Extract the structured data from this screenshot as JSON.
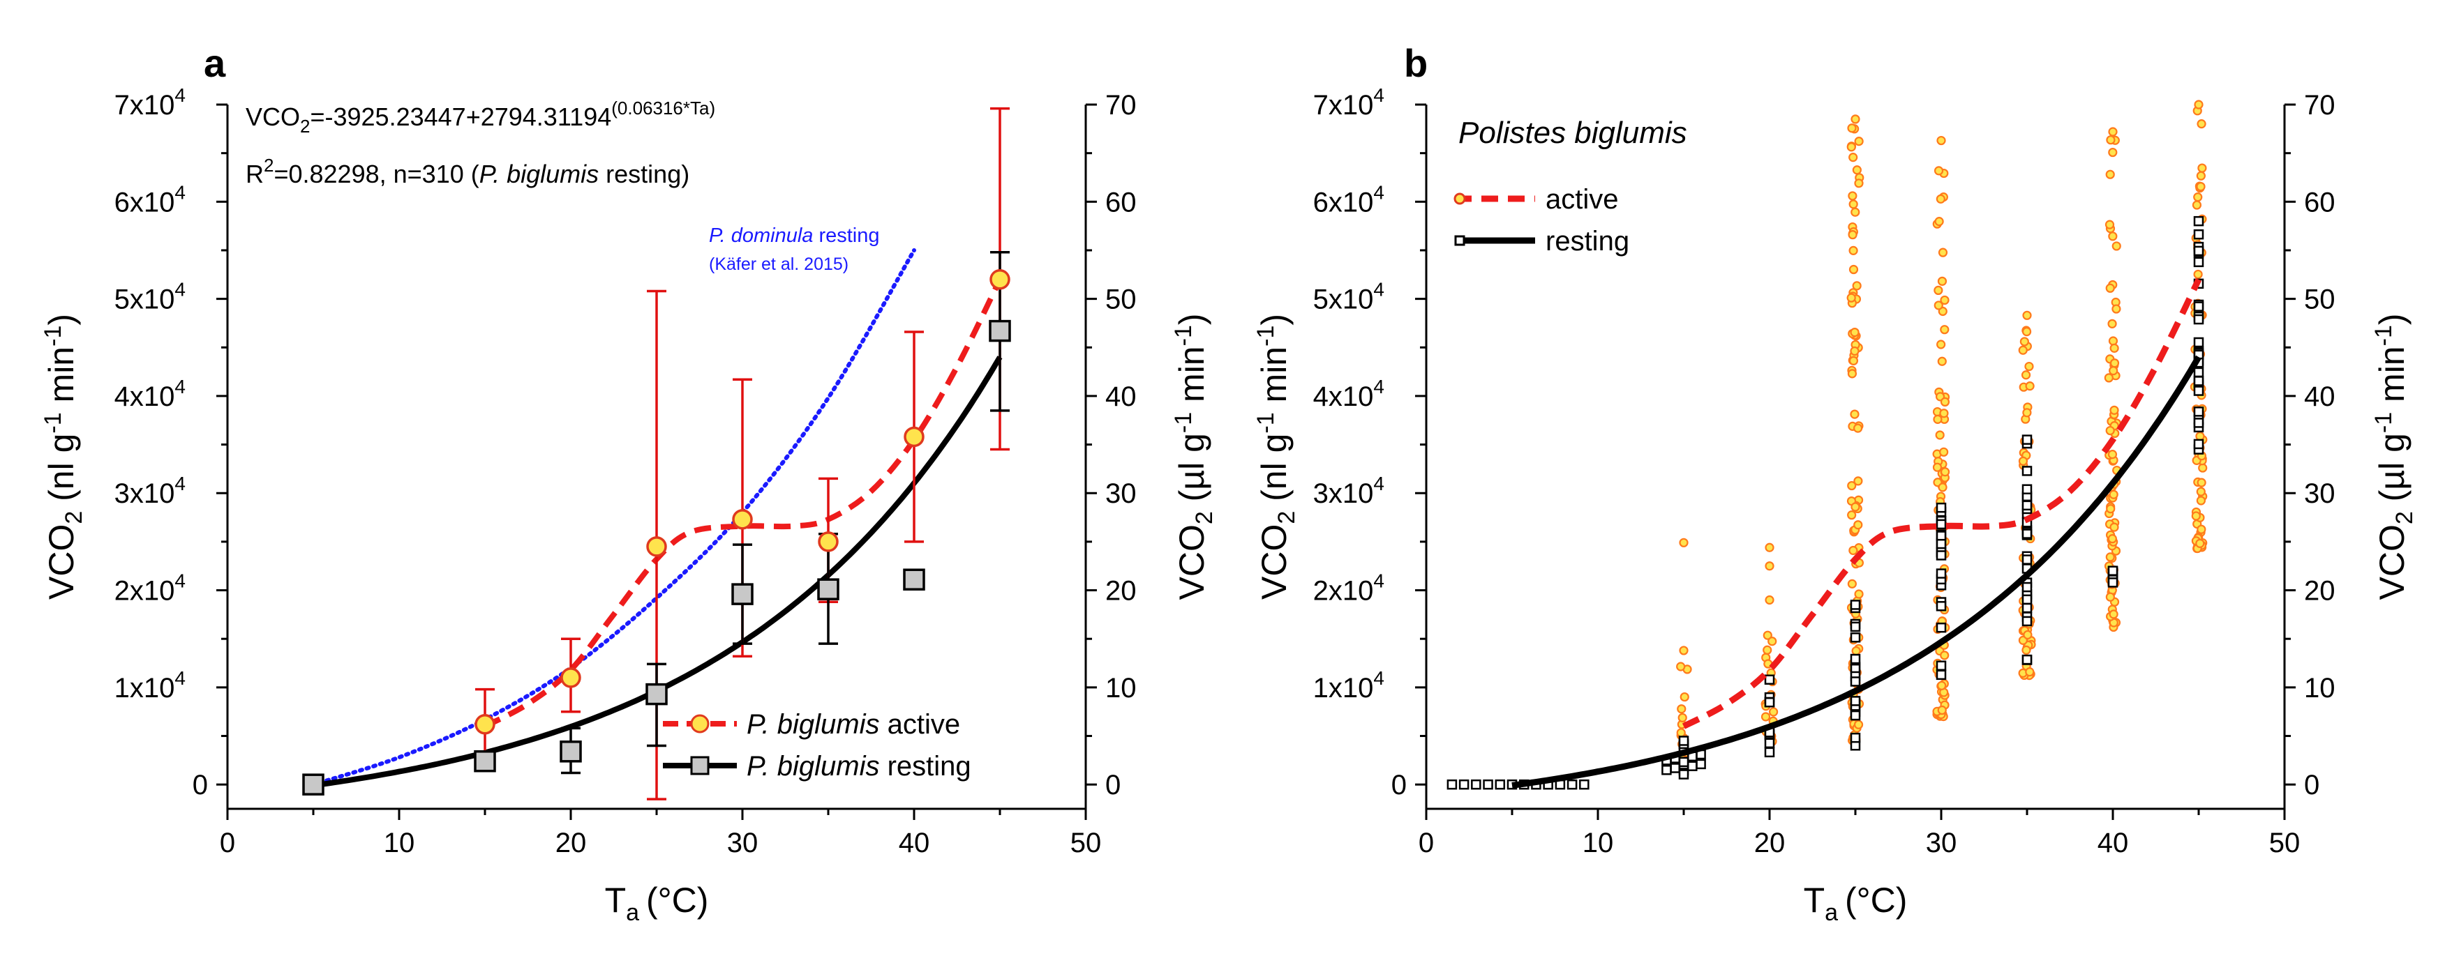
{
  "panel_letters": {
    "a": "a",
    "b": "b"
  },
  "chart_data": [
    {
      "panel": "a",
      "type": "scatter",
      "xlabel": "T",
      "xlabel_sub": "a",
      "xlabel_unit": "(°C)",
      "ylabel_left": "VCO",
      "ylabel_left_unit": "(nl g  min )",
      "ylabel_right": "VCO",
      "ylabel_right_unit": "(µl g  min )",
      "xlim": [
        0,
        50
      ],
      "ylim": [
        -2500,
        70000
      ],
      "x_ticks": [
        "0",
        "10",
        "20",
        "30",
        "40",
        "50"
      ],
      "y_ticks_left": [
        "0",
        "1x10",
        "2x10",
        "3x10",
        "4x10",
        "5x10",
        "6x10",
        "7x10"
      ],
      "y_tick_exponent": "4",
      "y_ticks_right": [
        "0",
        "10",
        "20",
        "30",
        "40",
        "50",
        "60",
        "70"
      ],
      "equation": {
        "line1_text": "VCO",
        "line1_sub": "2",
        "line1_rest": "=-3925.23447+2794.31194",
        "line1_sup": "(0.06316*Ta)",
        "line2_prefix": "R",
        "line2_sup": "2",
        "line2_rest": "=0.82298, n=310 (",
        "line2_italic": "P. biglumis",
        "line2_end": " resting)"
      },
      "annotation_dominula": {
        "italic": "P. dominula",
        "rest": " resting",
        "ref": "(Käfer et al. 2015)",
        "color": "#1a1aff"
      },
      "series": [
        {
          "name": "P. biglumis active",
          "legend_italic": "P. biglumis",
          "legend_rest": " active",
          "marker": "circle",
          "marker_fill": "#ffe34d",
          "marker_stroke": "#e03a1e",
          "error_color": "#e01010",
          "x": [
            15,
            20,
            25,
            30,
            35,
            40,
            45
          ],
          "y": [
            6200,
            11000,
            24500,
            27300,
            25000,
            35800,
            52000
          ],
          "yerr_low": [
            2800,
            7500,
            -1500,
            13200,
            18800,
            25000,
            34500
          ],
          "yerr_high": [
            9800,
            15000,
            50800,
            41700,
            31500,
            46600,
            69600
          ]
        },
        {
          "name": "P. biglumis resting",
          "legend_italic": "P. biglumis",
          "legend_rest": " resting",
          "marker": "square",
          "marker_fill": "#c8c8c8",
          "marker_stroke": "#000000",
          "error_color": "#000000",
          "x": [
            5,
            15,
            20,
            25,
            30,
            35,
            40,
            45
          ],
          "y": [
            0,
            2400,
            3400,
            9300,
            19600,
            20100,
            21100,
            46700
          ],
          "yerr_low": [
            -300,
            1500,
            1200,
            4000,
            14500,
            14500,
            20500,
            38500
          ],
          "yerr_high": [
            300,
            3400,
            5800,
            12400,
            24700,
            25800,
            21700,
            54800
          ]
        }
      ],
      "fit_lines": [
        {
          "name": "active fit",
          "style": "dashed",
          "color": "#ee1c1c",
          "x": [
            15,
            17.5,
            20,
            22.5,
            25,
            27,
            30,
            33,
            35,
            37.5,
            40,
            42.5,
            45
          ],
          "y": [
            6000,
            8300,
            11800,
            17500,
            23200,
            26000,
            26600,
            26600,
            27300,
            30200,
            35500,
            43000,
            52000
          ]
        },
        {
          "name": "resting fit",
          "style": "solid",
          "color": "#000000",
          "equation": "exp"
        },
        {
          "name": "P. dominula resting",
          "style": "dotted",
          "color": "#1a1aff",
          "x": [
            5,
            10,
            15,
            20,
            25,
            30,
            35,
            40
          ],
          "y": [
            0,
            2800,
            6700,
            12000,
            19200,
            28000,
            39800,
            55000
          ]
        }
      ]
    },
    {
      "panel": "b",
      "type": "scatter",
      "title_italic": "Polistes biglumis",
      "xlabel": "T",
      "xlabel_sub": "a",
      "xlabel_unit": "(°C)",
      "ylabel_left": "VCO",
      "ylabel_left_unit": "(nl g  min )",
      "ylabel_right": "VCO",
      "ylabel_right_unit": "(µl g  min )",
      "xlim": [
        0,
        50
      ],
      "ylim": [
        -2500,
        70000
      ],
      "x_ticks": [
        "0",
        "10",
        "20",
        "30",
        "40",
        "50"
      ],
      "y_ticks_left": [
        "0",
        "1x10",
        "2x10",
        "3x10",
        "4x10",
        "5x10",
        "6x10",
        "7x10"
      ],
      "y_tick_exponent": "4",
      "y_ticks_right": [
        "0",
        "10",
        "20",
        "30",
        "40",
        "50",
        "60",
        "70"
      ],
      "legend": [
        {
          "name": "active",
          "style": "dashed",
          "color": "#ee1c1c",
          "marker": "circle"
        },
        {
          "name": "resting",
          "style": "solid",
          "color": "#000000",
          "marker": "square"
        }
      ],
      "scatter_active": [
        {
          "x": 15,
          "y_min": 2500,
          "y_max": 13800,
          "extra": [
            24900
          ]
        },
        {
          "x": 20,
          "y_min": 3900,
          "y_max": 19000,
          "extra": [
            22500,
            24400
          ]
        },
        {
          "x": 25,
          "y_min": 4500,
          "y_max": 68500
        },
        {
          "x": 30,
          "y_min": 7000,
          "y_max": 66300
        },
        {
          "x": 35,
          "y_min": 11000,
          "y_max": 48300
        },
        {
          "x": 40,
          "y_min": 16200,
          "y_max": 67200
        },
        {
          "x": 45,
          "y_min": 24300,
          "y_max": 70000
        }
      ],
      "scatter_resting": [
        {
          "x": 15,
          "y_min": 500,
          "y_max": 4500
        },
        {
          "x": 20,
          "y_min": 3300,
          "y_max": 10800
        },
        {
          "x": 25,
          "y_min": 3300,
          "y_max": 18500
        },
        {
          "x": 30,
          "y_min": 11000,
          "y_max": 28500
        },
        {
          "x": 35,
          "y_min": 12000,
          "y_max": 35500
        },
        {
          "x": 40,
          "y_min": 20500,
          "y_max": 22000
        },
        {
          "x": 45,
          "y_min": 32500,
          "y_max": 58000
        }
      ],
      "resting_low_x": [
        1.5,
        2.2,
        2.9,
        3.6,
        4.3,
        5,
        5.7,
        6.4,
        7.1,
        7.8,
        8.5,
        9.2
      ],
      "resting_cluster_x": [
        14,
        14.5,
        15.5,
        16
      ]
    }
  ]
}
